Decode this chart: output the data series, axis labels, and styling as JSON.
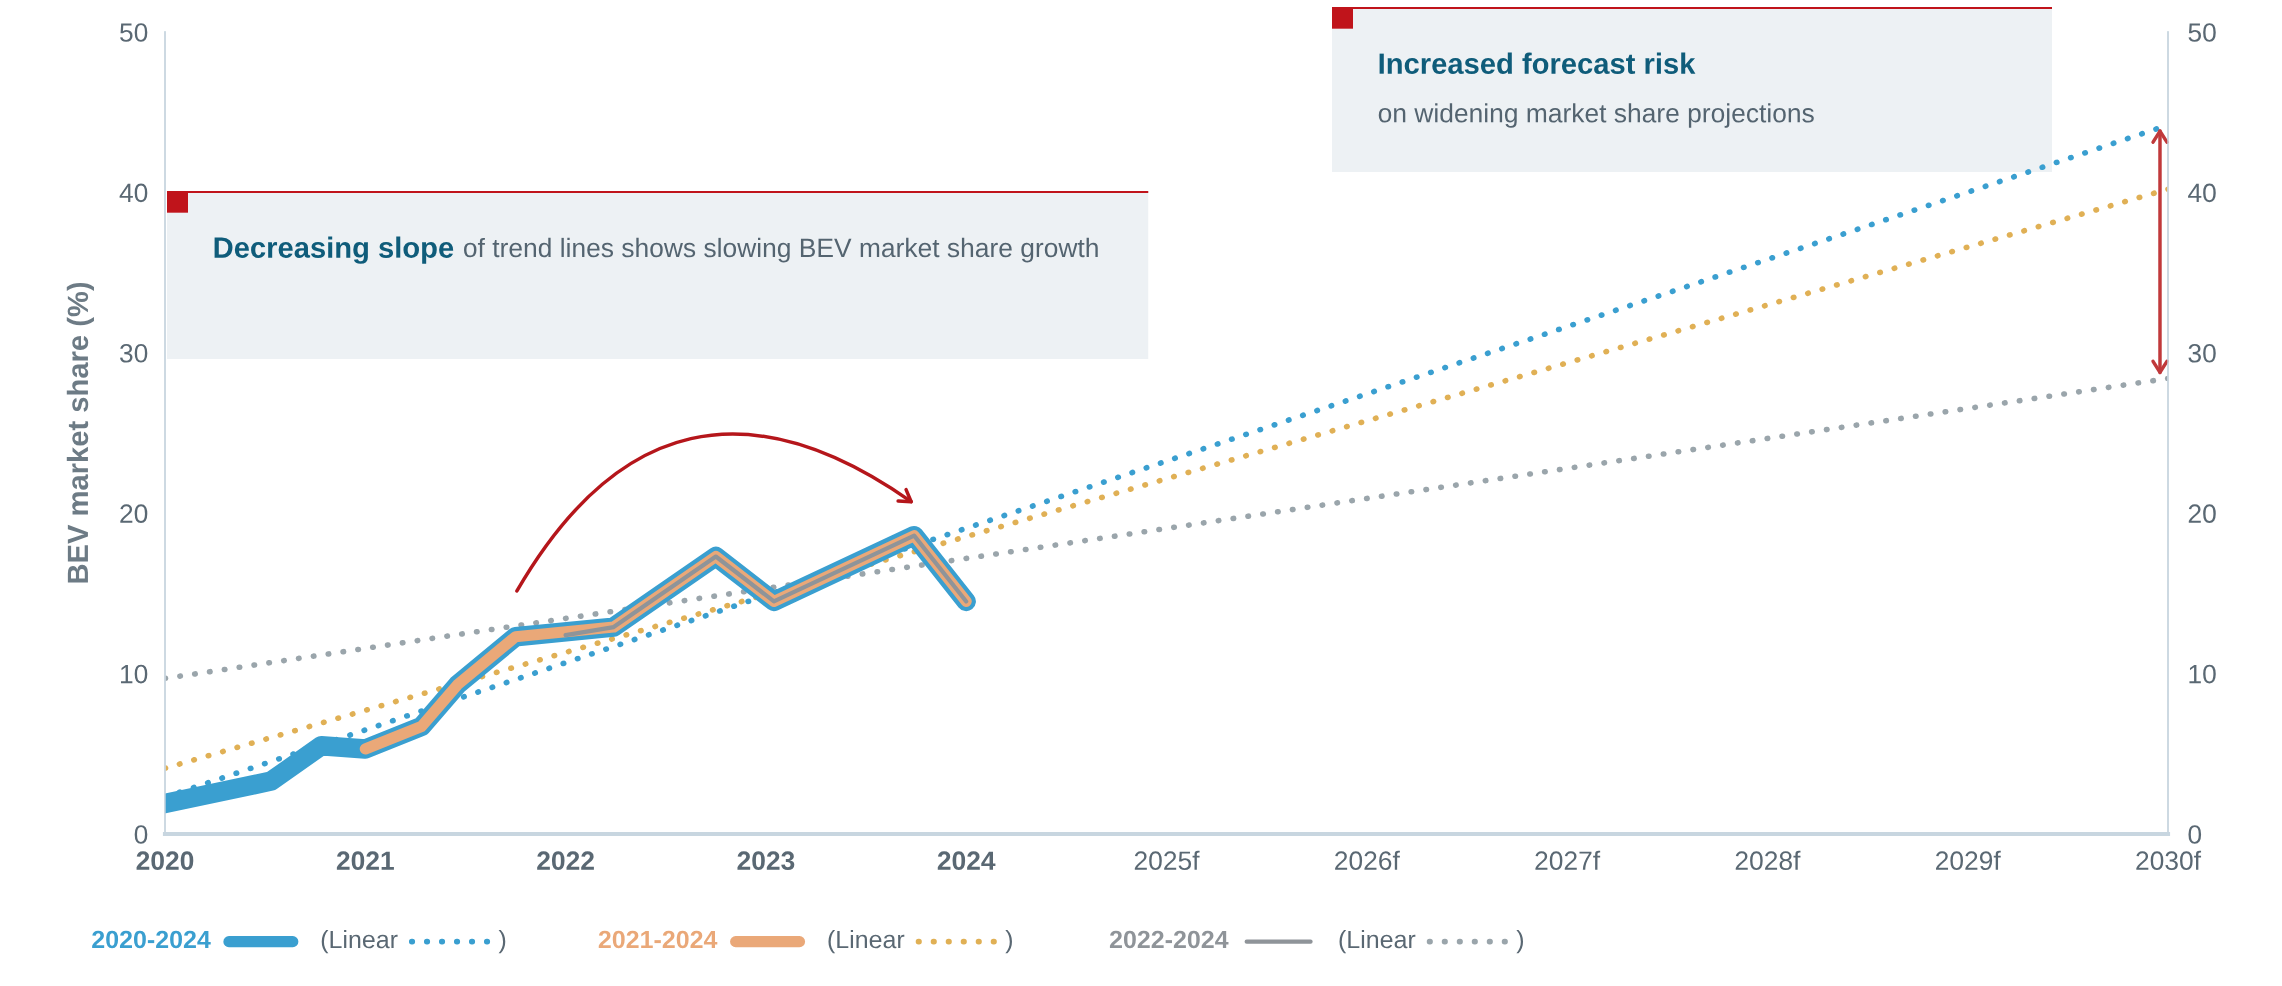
{
  "chart_data": {
    "type": "line",
    "ylabel": "BEV market share (%)",
    "xlim": [
      2020,
      2030
    ],
    "xticks": [
      2020,
      2021,
      2022,
      2023,
      2024,
      {
        "value": 2025,
        "label": "2025f"
      },
      {
        "value": 2026,
        "label": "2026f"
      },
      {
        "value": 2027,
        "label": "2027f"
      },
      {
        "value": 2028,
        "label": "2028f"
      },
      {
        "value": 2029,
        "label": "2029f"
      },
      {
        "value": 2030,
        "label": "2030f"
      }
    ],
    "ylim": [
      0,
      50
    ],
    "yticks": [
      0,
      10,
      20,
      30,
      40,
      50
    ],
    "y2lim": [
      0,
      50
    ],
    "y2ticks": [
      0,
      10,
      20,
      30,
      40,
      50
    ],
    "grid": false,
    "legend": "bottom",
    "line_style": "solid",
    "series": [
      {
        "name": "2020-2024",
        "color": "#3a9fd0",
        "x": [
          2020.0,
          2020.53,
          2020.78,
          2021.0,
          2021.28,
          2021.46,
          2021.75,
          2022.24,
          2022.75,
          2023.04,
          2023.74,
          2024.0
        ],
        "values": [
          1.9,
          3.3,
          5.5,
          5.3,
          6.7,
          9.3,
          12.3,
          12.9,
          17.3,
          14.5,
          18.6,
          14.5
        ]
      },
      {
        "name": "2021-2024",
        "color": "#eaa878",
        "x": [
          2021.0,
          2021.28,
          2021.46,
          2021.75,
          2022.24,
          2022.75,
          2023.04,
          2023.74,
          2024.0
        ],
        "values": [
          5.3,
          6.7,
          9.3,
          12.3,
          12.9,
          17.3,
          14.5,
          18.6,
          14.5
        ]
      },
      {
        "name": "2022-2024",
        "color": "#8f9499",
        "x": [
          2022.0,
          2022.24,
          2022.75,
          2023.04,
          2023.74,
          2024.0
        ],
        "values": [
          12.4,
          12.9,
          17.3,
          14.5,
          18.6,
          14.5
        ]
      },
      {
        "name": "(Linear)",
        "color": "#3a9fd0",
        "x": [
          2020,
          2030
        ],
        "values": [
          2.3,
          44.2
        ],
        "line_style": "dotted"
      },
      {
        "name": "(Linear)",
        "color": "#e0b055",
        "x": [
          2020,
          2030
        ],
        "values": [
          4.1,
          40.2
        ],
        "line_style": "dotted"
      },
      {
        "name": "(Linear)",
        "color": "#9aa5ab",
        "x": [
          2020,
          2030
        ],
        "values": [
          9.7,
          28.4
        ],
        "line_style": "dotted"
      }
    ],
    "annotations": [
      "Decreasing slope",
      "of trend lines shows slowing BEV market share growth",
      "Increased forecast risk",
      "on widening market share projections"
    ]
  }
}
